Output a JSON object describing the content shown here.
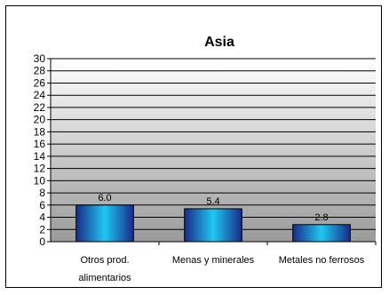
{
  "chart_data": {
    "type": "bar",
    "title": "Asia",
    "categories": [
      "Otros prod. alimentarios",
      "Menas y minerales",
      "Metales no ferrosos"
    ],
    "category_lines": [
      [
        "Otros prod.",
        "alimentarios"
      ],
      [
        "Menas y minerales"
      ],
      [
        "Metales no ferrosos"
      ]
    ],
    "values": [
      6.0,
      5.4,
      2.8
    ],
    "value_labels": [
      "6.0",
      "5.4",
      "2.8"
    ],
    "ylim": [
      0,
      30
    ],
    "yticks": [
      0,
      2,
      4,
      6,
      8,
      10,
      12,
      14,
      16,
      18,
      20,
      22,
      24,
      26,
      28,
      30
    ],
    "xlabel": "",
    "ylabel": "",
    "grid": true,
    "legend": "none",
    "colors": {
      "bar_dark": "#1a2a8a",
      "bar_light": "#1ec8f0",
      "plot_top": "#ffffff",
      "plot_bottom": "#9a9a9a"
    }
  }
}
